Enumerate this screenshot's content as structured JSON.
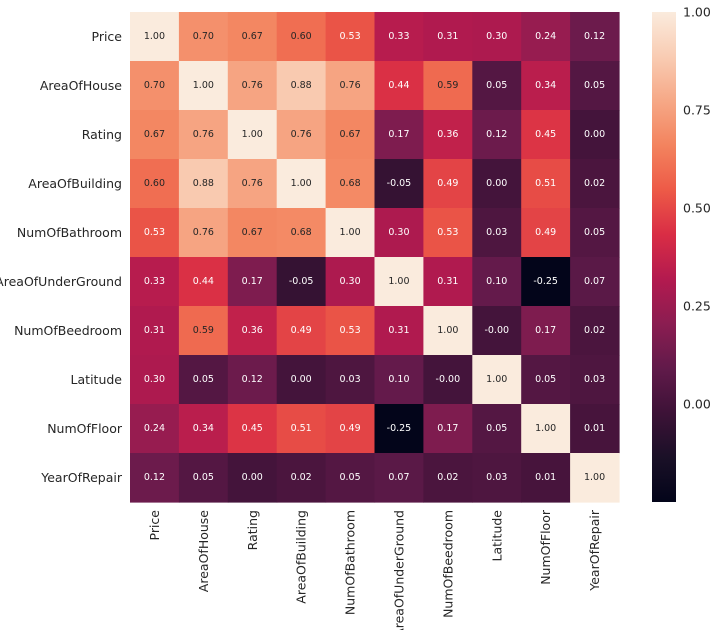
{
  "chart_data": {
    "type": "heatmap",
    "title": "",
    "xlabel": "",
    "ylabel": "",
    "variables": [
      "Price",
      "AreaOfHouse",
      "Rating",
      "AreaOfBuilding",
      "NumOfBathroom",
      "AreaOfUnderGround",
      "NumOfBeedroom",
      "Latitude",
      "NumOfFloor",
      "YearOfRepair"
    ],
    "values": [
      [
        1.0,
        0.7,
        0.67,
        0.6,
        0.53,
        0.33,
        0.31,
        0.3,
        0.24,
        0.12
      ],
      [
        0.7,
        1.0,
        0.76,
        0.88,
        0.76,
        0.44,
        0.59,
        0.05,
        0.34,
        0.05
      ],
      [
        0.67,
        0.76,
        1.0,
        0.76,
        0.67,
        0.17,
        0.36,
        0.12,
        0.45,
        0.0
      ],
      [
        0.6,
        0.88,
        0.76,
        1.0,
        0.68,
        -0.05,
        0.49,
        0.0,
        0.51,
        0.02
      ],
      [
        0.53,
        0.76,
        0.67,
        0.68,
        1.0,
        0.3,
        0.53,
        0.03,
        0.49,
        0.05
      ],
      [
        0.33,
        0.44,
        0.17,
        -0.05,
        0.3,
        1.0,
        0.31,
        0.1,
        -0.25,
        0.07
      ],
      [
        0.31,
        0.59,
        0.36,
        0.49,
        0.53,
        0.31,
        1.0,
        -0.0,
        0.17,
        0.02
      ],
      [
        0.3,
        0.05,
        0.12,
        0.0,
        0.03,
        0.1,
        -0.0,
        1.0,
        0.05,
        0.03
      ],
      [
        0.24,
        0.34,
        0.45,
        0.51,
        0.49,
        -0.25,
        0.17,
        0.05,
        1.0,
        0.01
      ],
      [
        0.12,
        0.05,
        0.0,
        0.02,
        0.05,
        0.07,
        0.02,
        0.03,
        0.01,
        1.0
      ]
    ],
    "cell_labels": [
      [
        "1.00",
        "0.70",
        "0.67",
        "0.60",
        "0.53",
        "0.33",
        "0.31",
        "0.30",
        "0.24",
        "0.12"
      ],
      [
        "0.70",
        "1.00",
        "0.76",
        "0.88",
        "0.76",
        "0.44",
        "0.59",
        "0.05",
        "0.34",
        "0.05"
      ],
      [
        "0.67",
        "0.76",
        "1.00",
        "0.76",
        "0.67",
        "0.17",
        "0.36",
        "0.12",
        "0.45",
        "0.00"
      ],
      [
        "0.60",
        "0.88",
        "0.76",
        "1.00",
        "0.68",
        "-0.05",
        "0.49",
        "0.00",
        "0.51",
        "0.02"
      ],
      [
        "0.53",
        "0.76",
        "0.67",
        "0.68",
        "1.00",
        "0.30",
        "0.53",
        "0.03",
        "0.49",
        "0.05"
      ],
      [
        "0.33",
        "0.44",
        "0.17",
        "-0.05",
        "0.30",
        "1.00",
        "0.31",
        "0.10",
        "-0.25",
        "0.07"
      ],
      [
        "0.31",
        "0.59",
        "0.36",
        "0.49",
        "0.53",
        "0.31",
        "1.00",
        "-0.00",
        "0.17",
        "0.02"
      ],
      [
        "0.30",
        "0.05",
        "0.12",
        "0.00",
        "0.03",
        "0.10",
        "-0.00",
        "1.00",
        "0.05",
        "0.03"
      ],
      [
        "0.24",
        "0.34",
        "0.45",
        "0.51",
        "0.49",
        "-0.25",
        "0.17",
        "0.05",
        "1.00",
        "0.01"
      ],
      [
        "0.12",
        "0.05",
        "0.00",
        "0.02",
        "0.05",
        "0.07",
        "0.02",
        "0.03",
        "0.01",
        "1.00"
      ]
    ],
    "colormap": "rocket",
    "colorbar": {
      "vmin": -0.25,
      "vmax": 1.0,
      "ticks": [
        0.0,
        0.25,
        0.5,
        0.75,
        1.0
      ],
      "tick_labels": [
        "0.00",
        "0.25",
        "0.50",
        "0.75",
        "1.00"
      ],
      "placement": "right"
    },
    "cmap_stops": [
      "#03051a",
      "#1a1027",
      "#3d1237",
      "#611a4a",
      "#8b1d51",
      "#b31a4f",
      "#d92d45",
      "#ed5a47",
      "#f3835e",
      "#f6a886",
      "#f9ccb3",
      "#faebdd"
    ],
    "text_dark_color": "#262626",
    "text_light_color": "#ffffff"
  }
}
